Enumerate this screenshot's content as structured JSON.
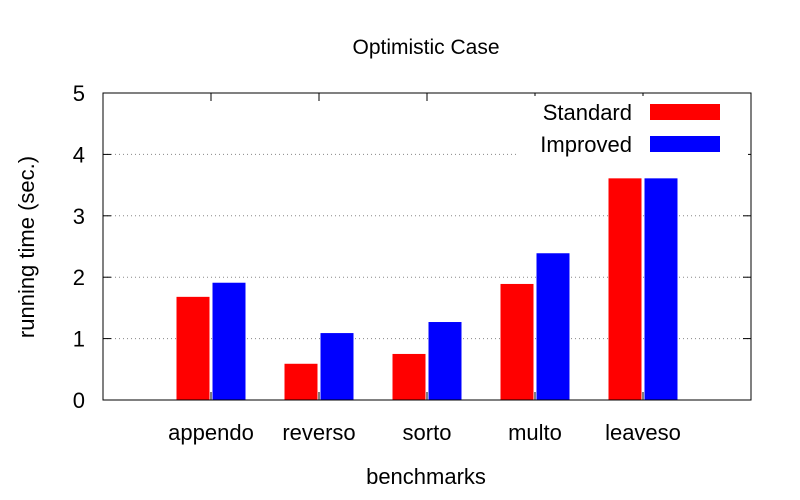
{
  "chart_data": {
    "type": "bar",
    "title": "Optimistic Case",
    "xlabel": "benchmarks",
    "ylabel": "running time (sec.)",
    "categories": [
      "appendo",
      "reverso",
      "sorto",
      "multo",
      "leaveso"
    ],
    "series": [
      {
        "name": "Standard",
        "color": "#ff0000",
        "values": [
          1.68,
          0.59,
          0.75,
          1.89,
          3.61
        ]
      },
      {
        "name": "Improved",
        "color": "#0000ff",
        "values": [
          1.91,
          1.09,
          1.27,
          2.39,
          3.61
        ]
      }
    ],
    "ylim": [
      0,
      5
    ],
    "yticks": [
      "0",
      "1",
      "2",
      "3",
      "4",
      "5"
    ],
    "grid": "horizontal-dotted",
    "legend_position": "top-right"
  }
}
